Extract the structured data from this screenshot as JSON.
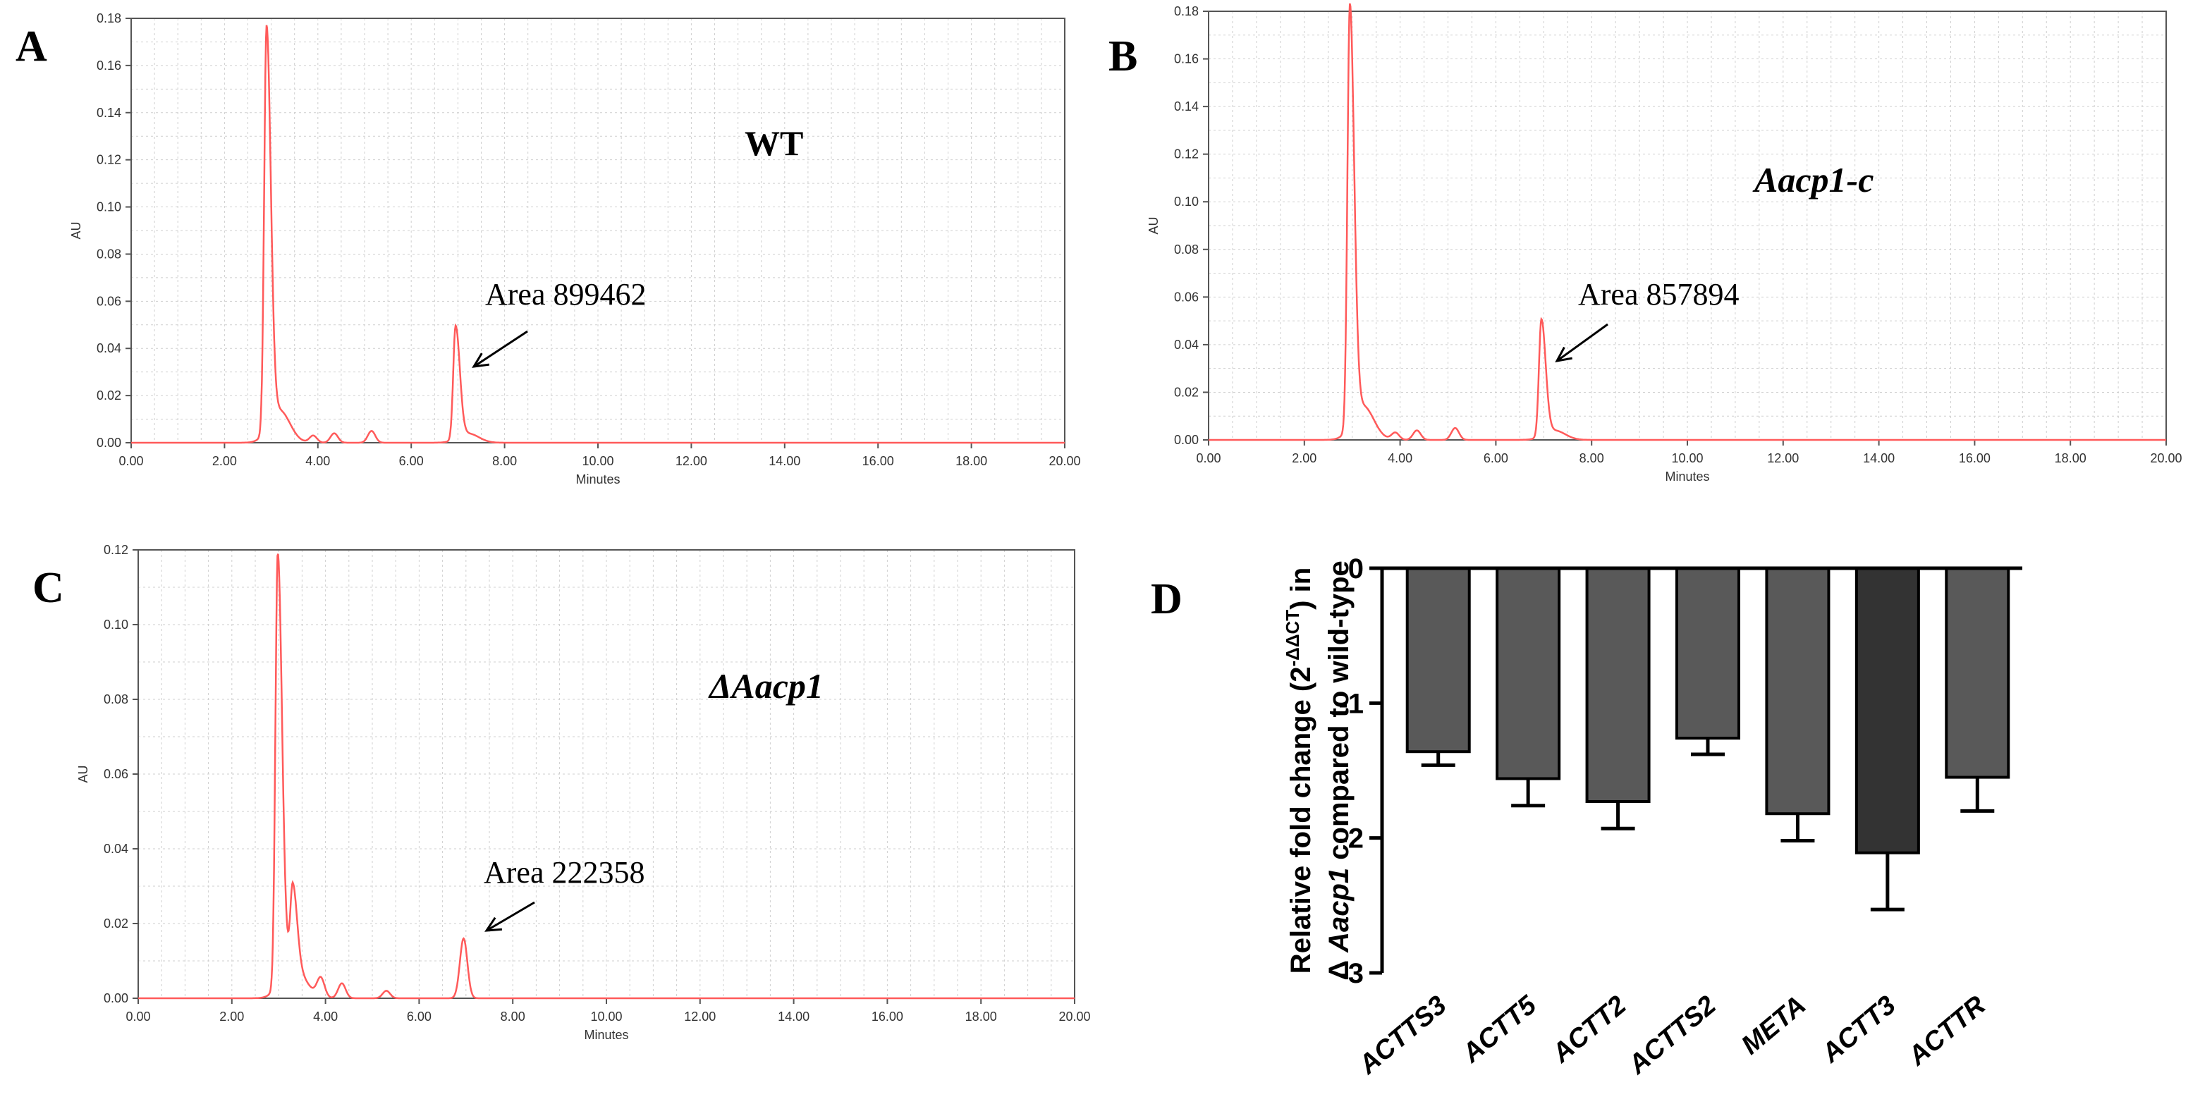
{
  "chart_data": [
    {
      "type": "line",
      "panel_letter": "A",
      "sample_label": "WT",
      "annotation": "Area 899462",
      "xlabel": "Minutes",
      "ylabel": "AU",
      "xlim": [
        0,
        20
      ],
      "ylim": [
        0,
        0.18
      ],
      "xticks": [
        "0.00",
        "2.00",
        "4.00",
        "6.00",
        "8.00",
        "10.00",
        "12.00",
        "14.00",
        "16.00",
        "18.00",
        "20.00"
      ],
      "yticks": [
        "0.00",
        "0.02",
        "0.04",
        "0.06",
        "0.08",
        "0.10",
        "0.12",
        "0.14",
        "0.16",
        "0.18"
      ],
      "grid": true,
      "line_color": "#ff5a5a",
      "peaks": [
        {
          "t": 2.9,
          "h": 0.171
        },
        {
          "t": 3.9,
          "h": 0.003
        },
        {
          "t": 4.35,
          "h": 0.004
        },
        {
          "t": 5.15,
          "h": 0.005
        },
        {
          "t": 6.95,
          "h": 0.048
        }
      ],
      "annotation_peak_t": 6.95
    },
    {
      "type": "line",
      "panel_letter": "B",
      "sample_label": "Aacp1-c",
      "annotation": "Area 857894",
      "xlabel": "Minutes",
      "ylabel": "AU",
      "xlim": [
        0,
        20
      ],
      "ylim": [
        0,
        0.18
      ],
      "xticks": [
        "0.00",
        "2.00",
        "4.00",
        "6.00",
        "8.00",
        "10.00",
        "12.00",
        "14.00",
        "16.00",
        "18.00",
        "20.00"
      ],
      "yticks": [
        "0.00",
        "0.02",
        "0.04",
        "0.06",
        "0.08",
        "0.10",
        "0.12",
        "0.14",
        "0.16",
        "0.18"
      ],
      "grid": true,
      "line_color": "#ff5a5a",
      "peaks": [
        {
          "t": 2.95,
          "h": 0.177
        },
        {
          "t": 3.9,
          "h": 0.003
        },
        {
          "t": 4.35,
          "h": 0.004
        },
        {
          "t": 5.15,
          "h": 0.005
        },
        {
          "t": 6.95,
          "h": 0.049
        }
      ],
      "annotation_peak_t": 6.95
    },
    {
      "type": "line",
      "panel_letter": "C",
      "sample_label": "ΔAacp1",
      "annotation": "Area 222358",
      "xlabel": "Minutes",
      "ylabel": "AU",
      "xlim": [
        0,
        20
      ],
      "ylim": [
        0,
        0.12
      ],
      "xticks": [
        "0.00",
        "2.00",
        "4.00",
        "6.00",
        "8.00",
        "10.00",
        "12.00",
        "14.00",
        "16.00",
        "18.00",
        "20.00"
      ],
      "yticks": [
        "0.00",
        "0.02",
        "0.04",
        "0.06",
        "0.08",
        "0.10",
        "0.12"
      ],
      "grid": true,
      "line_color": "#ff5a5a",
      "peaks": [
        {
          "t": 2.98,
          "h": 0.115
        },
        {
          "t": 3.3,
          "h": 0.021
        },
        {
          "t": 3.9,
          "h": 0.005
        },
        {
          "t": 4.35,
          "h": 0.004
        },
        {
          "t": 5.3,
          "h": 0.002
        },
        {
          "t": 6.95,
          "h": 0.016
        }
      ],
      "annotation_peak_t": 6.95
    },
    {
      "type": "bar",
      "panel_letter": "D",
      "ylabel_line1": "Relative fold change (2",
      "ylabel_sup": "-ΔΔCT",
      "ylabel_line1_end": ") in",
      "ylabel_delta": "Δ",
      "ylabel_gene": "Aacp1",
      "ylabel_line2_end": " compared to wild-type",
      "ylim": [
        -3,
        0
      ],
      "yticks": [
        "0",
        "-1",
        "-2",
        "-3"
      ],
      "categories": [
        "ACTTS3",
        "ACTT5",
        "ACTT2",
        "ACTTS2",
        "META",
        "ACTT3",
        "ACTTR"
      ],
      "values": [
        -1.36,
        -1.56,
        -1.73,
        -1.26,
        -1.82,
        -2.11,
        -1.55
      ],
      "errors": [
        0.1,
        0.2,
        0.2,
        0.12,
        0.2,
        0.42,
        0.25
      ],
      "colors": [
        "#595959",
        "#595959",
        "#595959",
        "#595959",
        "#595959",
        "#333333",
        "#595959"
      ]
    }
  ]
}
